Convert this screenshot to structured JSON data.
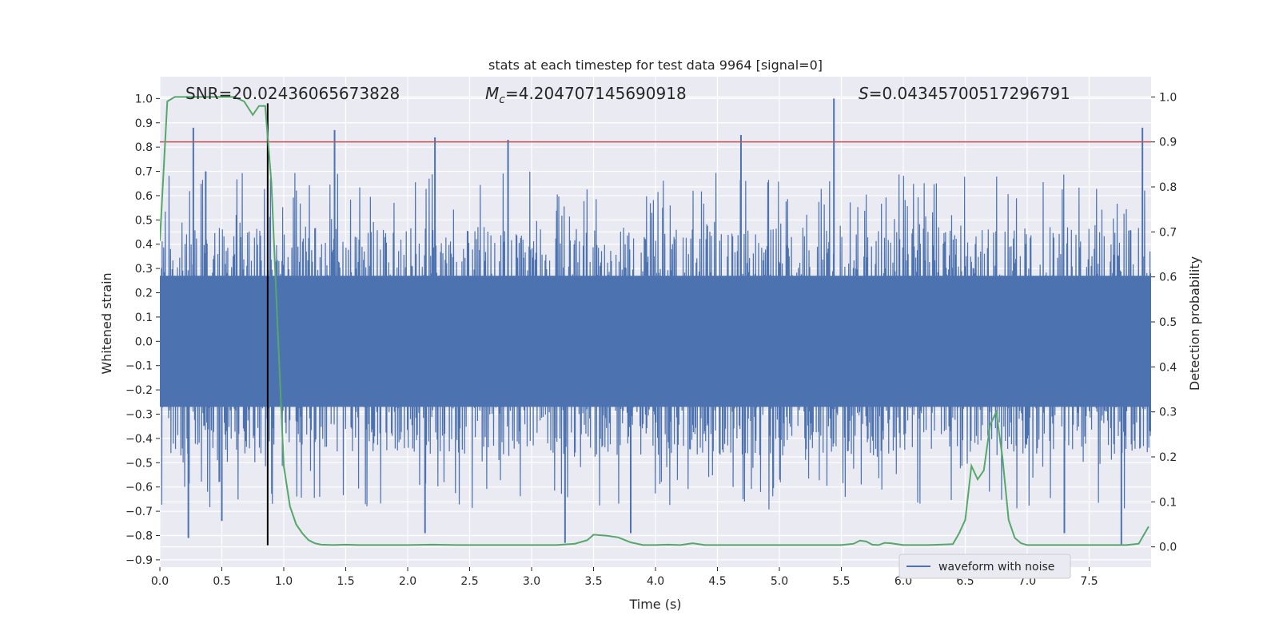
{
  "chart_data": {
    "type": "line",
    "title": "stats at each timestep for test data 9964 [signal=0]",
    "xlabel": "Time (s)",
    "ylabel": "Whitened strain",
    "y2label": "Detection probability",
    "xlim": [
      0.0,
      8.0
    ],
    "ylim": [
      -0.93,
      1.09
    ],
    "y2lim": [
      -0.045,
      1.045
    ],
    "grid": true,
    "xticks": [
      "0.0",
      "0.5",
      "1.0",
      "1.5",
      "2.0",
      "2.5",
      "3.0",
      "3.5",
      "4.0",
      "4.5",
      "5.0",
      "5.5",
      "6.0",
      "6.5",
      "7.0",
      "7.5"
    ],
    "xtick_values": [
      0.0,
      0.5,
      1.0,
      1.5,
      2.0,
      2.5,
      3.0,
      3.5,
      4.0,
      4.5,
      5.0,
      5.5,
      6.0,
      6.5,
      7.0,
      7.5
    ],
    "yticks": [
      "1.0",
      "0.9",
      "0.8",
      "0.7",
      "0.6",
      "0.5",
      "0.4",
      "0.3",
      "0.2",
      "0.1",
      "0.0",
      "−0.1",
      "−0.2",
      "−0.3",
      "−0.4",
      "−0.5",
      "−0.6",
      "−0.7",
      "−0.8",
      "−0.9"
    ],
    "ytick_values": [
      1.0,
      0.9,
      0.8,
      0.7,
      0.6,
      0.5,
      0.4,
      0.3,
      0.2,
      0.1,
      0.0,
      -0.1,
      -0.2,
      -0.3,
      -0.4,
      -0.5,
      -0.6,
      -0.7,
      -0.8,
      -0.9
    ],
    "y2ticks": [
      "1.0",
      "0.9",
      "0.8",
      "0.7",
      "0.6",
      "0.5",
      "0.4",
      "0.3",
      "0.2",
      "0.1",
      "0.0"
    ],
    "y2tick_values": [
      1.0,
      0.9,
      0.8,
      0.7,
      0.6,
      0.5,
      0.4,
      0.3,
      0.2,
      0.1,
      0.0
    ],
    "annotations": {
      "snr": "SNR=20.02436065673828",
      "mc_symbol": "M",
      "mc_sub": "c",
      "mc_value": "=4.204707145690918",
      "s_symbol": "S",
      "s_value": "=0.04345700517296791"
    },
    "legend": {
      "label": "waveform with noise",
      "position": "lower-right"
    },
    "threshold_line": {
      "axis": "y2",
      "value": 0.9,
      "color": "#c44e52"
    },
    "vertical_marker": {
      "x": 0.87,
      "y_from": -0.84,
      "y_to": 0.98,
      "color": "#000000"
    },
    "waveform": {
      "color": "#4c72b0",
      "duration": 8.0,
      "sample_rate": 2048,
      "band_abs": 0.27,
      "spikes": [
        {
          "t": 0.27,
          "v": 0.88
        },
        {
          "t": 0.23,
          "v": -0.81
        },
        {
          "t": 0.37,
          "v": 0.7
        },
        {
          "t": 1.41,
          "v": 0.87
        },
        {
          "t": 2.22,
          "v": 0.84
        },
        {
          "t": 2.81,
          "v": 0.83
        },
        {
          "t": 3.27,
          "v": -0.83
        },
        {
          "t": 4.69,
          "v": 0.85
        },
        {
          "t": 5.44,
          "v": 1.0
        },
        {
          "t": 7.93,
          "v": 0.88
        },
        {
          "t": 7.76,
          "v": -0.84
        },
        {
          "t": 0.5,
          "v": -0.74
        },
        {
          "t": 2.14,
          "v": -0.79
        },
        {
          "t": 3.8,
          "v": -0.79
        },
        {
          "t": 7.3,
          "v": -0.79
        }
      ]
    },
    "series": [
      {
        "name": "",
        "axis": "y2",
        "color": "#55a868",
        "x": [
          0.0,
          0.06,
          0.12,
          0.2,
          0.3,
          0.4,
          0.5,
          0.6,
          0.68,
          0.75,
          0.8,
          0.85,
          0.9,
          0.95,
          1.0,
          1.05,
          1.1,
          1.15,
          1.2,
          1.25,
          1.3,
          1.4,
          1.5,
          1.6,
          1.8,
          2.0,
          2.2,
          2.4,
          2.6,
          2.8,
          3.0,
          3.2,
          3.35,
          3.45,
          3.5,
          3.6,
          3.7,
          3.8,
          3.9,
          4.0,
          4.1,
          4.2,
          4.3,
          4.4,
          4.6,
          4.8,
          5.0,
          5.2,
          5.4,
          5.5,
          5.6,
          5.65,
          5.7,
          5.75,
          5.8,
          5.85,
          5.9,
          6.0,
          6.1,
          6.2,
          6.3,
          6.4,
          6.45,
          6.5,
          6.55,
          6.6,
          6.65,
          6.7,
          6.75,
          6.8,
          6.85,
          6.9,
          6.95,
          7.0,
          7.2,
          7.4,
          7.6,
          7.8,
          7.9,
          7.98
        ],
        "y": [
          0.68,
          0.99,
          1.0,
          1.0,
          1.0,
          1.0,
          1.0,
          1.0,
          0.99,
          0.96,
          0.98,
          0.98,
          0.81,
          0.49,
          0.18,
          0.09,
          0.05,
          0.03,
          0.015,
          0.008,
          0.005,
          0.004,
          0.005,
          0.004,
          0.004,
          0.004,
          0.005,
          0.004,
          0.004,
          0.004,
          0.004,
          0.004,
          0.007,
          0.015,
          0.027,
          0.025,
          0.021,
          0.01,
          0.004,
          0.004,
          0.005,
          0.004,
          0.008,
          0.004,
          0.004,
          0.004,
          0.004,
          0.004,
          0.004,
          0.004,
          0.007,
          0.014,
          0.012,
          0.005,
          0.004,
          0.009,
          0.008,
          0.004,
          0.004,
          0.004,
          0.005,
          0.006,
          0.03,
          0.06,
          0.18,
          0.15,
          0.17,
          0.27,
          0.3,
          0.2,
          0.06,
          0.02,
          0.008,
          0.004,
          0.004,
          0.004,
          0.004,
          0.004,
          0.007,
          0.045
        ]
      }
    ]
  }
}
